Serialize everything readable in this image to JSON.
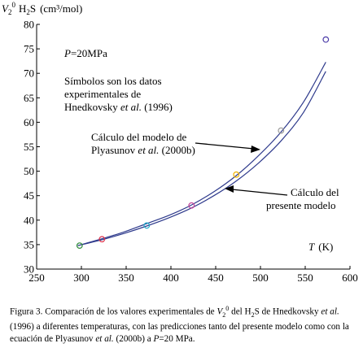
{
  "chart_data": {
    "type": "line",
    "title": "",
    "ylabel_parts": {
      "v": "V",
      "sub": "2",
      "sup": "0",
      "species": "H",
      "species_sub": "2",
      "species_tail": "S",
      "unit": "(cm³/mol)"
    },
    "xlabel_parts": {
      "t": "T",
      "unit": "(K)"
    },
    "xlim": [
      250,
      600
    ],
    "ylim": [
      30,
      80
    ],
    "xticks": [
      250,
      300,
      350,
      400,
      450,
      500,
      550,
      600
    ],
    "yticks": [
      30,
      35,
      40,
      45,
      50,
      55,
      60,
      65,
      70,
      75,
      80
    ],
    "grid": false,
    "annotations": {
      "pressure": {
        "p": "P",
        "text": "=20MPa"
      },
      "symbols_note": {
        "l1": "Símbolos son los datos",
        "l2": "experimentales de",
        "l3a": "Hnedkovsky ",
        "l3b": "et al.",
        "l3c": " (1996)"
      },
      "plyasunov": {
        "l1": "Cálculo del modelo de",
        "l2a": "Plyasunov ",
        "l2b": "et al.",
        "l2c": " (2000b)"
      },
      "present": {
        "l1": "Cálculo del",
        "l2": "presente modelo"
      }
    },
    "series": [
      {
        "role": "plyasunov-model",
        "x": [
          296,
          323,
          348,
          373,
          398,
          423,
          448,
          473,
          498,
          523,
          548,
          573
        ],
        "y": [
          34.8,
          36.2,
          37.6,
          39.3,
          41.0,
          43.1,
          45.8,
          49.1,
          53.2,
          58.0,
          64.1,
          72.3
        ]
      },
      {
        "role": "present-model",
        "x": [
          296,
          323,
          348,
          373,
          398,
          423,
          448,
          473,
          498,
          523,
          548,
          573
        ],
        "y": [
          34.8,
          36.0,
          37.3,
          38.8,
          40.5,
          42.5,
          45.0,
          48.0,
          51.7,
          56.2,
          62.0,
          70.4
        ]
      },
      {
        "role": "experimental",
        "points": [
          {
            "x": 298,
            "y": 34.8,
            "color": "#2e8b3a"
          },
          {
            "x": 323,
            "y": 36.1,
            "color": "#e0334a"
          },
          {
            "x": 373,
            "y": 38.9,
            "color": "#20a8c8"
          },
          {
            "x": 423,
            "y": 43.0,
            "color": "#c4449a"
          },
          {
            "x": 473,
            "y": 49.3,
            "color": "#f2b200"
          },
          {
            "x": 523,
            "y": 58.3,
            "color": "#9a9a9a"
          },
          {
            "x": 573,
            "y": 76.9,
            "color": "#4a3aa8"
          }
        ]
      }
    ],
    "line_color": "#2e3a8c"
  },
  "caption": {
    "p1": "Figura 3. Comparación de los valores experimentales de ",
    "v": "V",
    "v_sub": "2",
    "v_sup": "0",
    "p2": " del H",
    "h_sub": "2",
    "p3": "S de Hnedkovsky ",
    "etal1": "et al.",
    "p4": " (1996) a diferentes temperaturas, con las predicciones tanto del presente modelo como con la ecuación de Plyasunov ",
    "etal2": "et al.",
    "p5": " (2000b) a ",
    "p": "P",
    "p6": "=20 MPa."
  }
}
